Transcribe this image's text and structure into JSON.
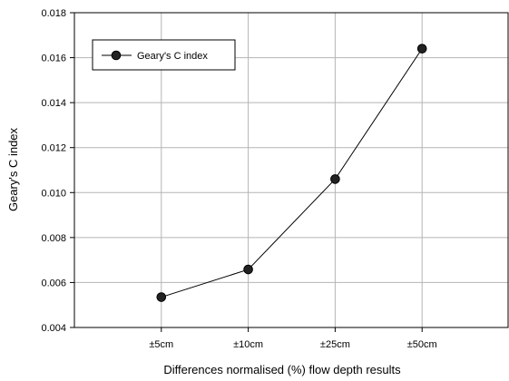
{
  "chart_data": {
    "type": "line",
    "categories": [
      "±5cm",
      "±10cm",
      "±25cm",
      "±50cm"
    ],
    "series": [
      {
        "name": "Geary's C index",
        "values": [
          0.00535,
          0.00658,
          0.0106,
          0.0164
        ],
        "color": "#000000",
        "marker": "circle"
      }
    ],
    "xlabel": "Differences normalised (%) flow depth results",
    "ylabel": "Geary's C index",
    "ylim": [
      0.004,
      0.018
    ],
    "yticks": [
      "0.004",
      "0.006",
      "0.008",
      "0.010",
      "0.012",
      "0.014",
      "0.016",
      "0.018"
    ],
    "grid": true,
    "legend_position": "top-left"
  }
}
